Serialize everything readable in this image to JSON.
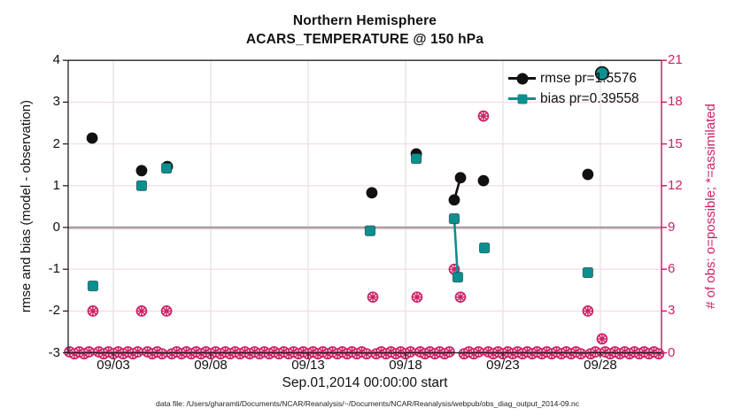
{
  "colors": {
    "magenta": "#CE2166",
    "teal": "#0E8F8F",
    "black": "#111111",
    "grid_horizontal": "#F4D9E1",
    "grid_vertical": "#E3DBDE",
    "zero_line": "#A99FA3",
    "spine": "#222222"
  },
  "chart_data": {
    "type": "scatter",
    "title": "Northern Hemisphere",
    "subtitle": "ACARS_TEMPERATURE @ 150 hPa",
    "xlabel": "Sep.01,2014 00:00:00 start",
    "ylabel_left": "rmse and bias (model - observation)",
    "ylabel_right": "# of obs: o=possible; *=assimilated",
    "xlim": [
      0.68,
      31.14
    ],
    "ylim_left": [
      -3,
      4
    ],
    "ylim_right": [
      0,
      21
    ],
    "grid": true,
    "xticks": [
      {
        "value": 3,
        "label": "09/03"
      },
      {
        "value": 8,
        "label": "09/08"
      },
      {
        "value": 13,
        "label": "09/13"
      },
      {
        "value": 18,
        "label": "09/18"
      },
      {
        "value": 23,
        "label": "09/23"
      },
      {
        "value": 28,
        "label": "09/28"
      }
    ],
    "yticks_left": [
      4,
      3,
      2,
      1,
      0,
      -1,
      -2,
      -3
    ],
    "yticks_right": [
      21,
      18,
      15,
      12,
      9,
      6,
      3,
      0
    ],
    "legend": [
      {
        "series": "rmse",
        "label": "rmse pr=1.5576"
      },
      {
        "series": "bias",
        "label": "bias pr=0.39558"
      }
    ],
    "series": [
      {
        "name": "rmse",
        "marker": "circle",
        "color_key": "black",
        "points": [
          [
            1.91,
            2.14
          ],
          [
            4.45,
            1.36
          ],
          [
            5.77,
            1.46
          ],
          [
            16.27,
            0.83
          ],
          [
            18.55,
            1.76
          ],
          [
            20.5,
            0.66
          ],
          [
            20.82,
            1.19
          ],
          [
            22.0,
            1.12
          ],
          [
            27.36,
            1.27
          ]
        ],
        "connect": [
          [
            5,
            6
          ]
        ]
      },
      {
        "name": "bias",
        "marker": "square",
        "color_key": "teal",
        "points": [
          [
            1.95,
            -1.4
          ],
          [
            4.45,
            1.0
          ],
          [
            5.73,
            1.42
          ],
          [
            16.18,
            -0.08
          ],
          [
            18.55,
            1.65
          ],
          [
            20.5,
            0.21
          ],
          [
            20.68,
            -1.19
          ],
          [
            22.05,
            -0.49
          ],
          [
            27.36,
            -1.08
          ]
        ],
        "connect": [
          [
            5,
            6
          ]
        ]
      }
    ],
    "outlier_marker": {
      "description": "teal filled circle with black edge",
      "x": 28.09,
      "y": 3.69
    },
    "obs_counts": {
      "marker": "circled-asterisk",
      "axis": "right",
      "points": [
        [
          1.95,
          3
        ],
        [
          4.45,
          3
        ],
        [
          5.73,
          3
        ],
        [
          16.32,
          4
        ],
        [
          18.59,
          4
        ],
        [
          20.82,
          4
        ],
        [
          20.5,
          6
        ],
        [
          22.0,
          17
        ],
        [
          27.36,
          3
        ],
        [
          28.09,
          1
        ]
      ],
      "zero_band": {
        "start": 0.75,
        "end": 31.0,
        "step": 0.25,
        "count": 0,
        "excluded_days": [
          2.0,
          4.5,
          5.75,
          16.25,
          18.5,
          20.5,
          20.75,
          22.0,
          27.25,
          28.0
        ]
      }
    },
    "footer": "data file: /Users/gharamti/Documents/NCAR/Reanalysis/~/Documents/NCAR/Reanalysis/webpub/obs_diag_output_2014-09.nc"
  }
}
